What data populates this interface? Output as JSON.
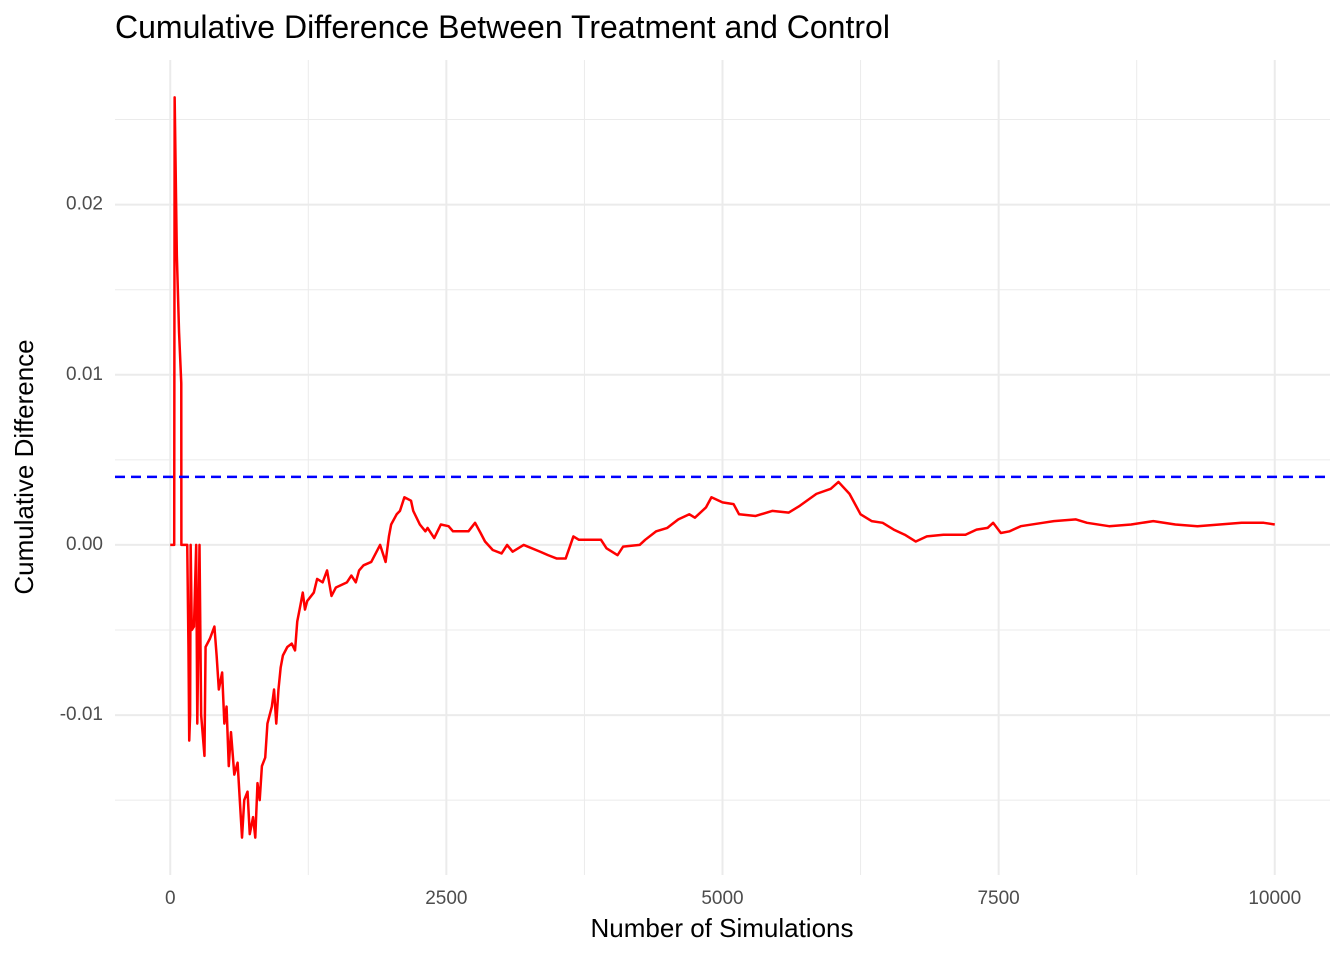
{
  "chart_data": {
    "type": "line",
    "title": "Cumulative Difference Between Treatment and Control",
    "x_label": "Number of Simulations",
    "y_label": "Cumulative Difference",
    "xlim": [
      -500,
      10500
    ],
    "ylim": [
      -0.0194,
      0.0285
    ],
    "xticks": [
      0,
      2500,
      5000,
      7500,
      10000
    ],
    "yticks": [
      -0.01,
      {
        "value": 0,
        "label": "0.00"
      },
      0.01,
      0.02
    ],
    "x_minor_ticks": [
      1250,
      3750,
      6250,
      8750
    ],
    "y_minor_ticks": [
      -0.015,
      -0.005,
      0.005,
      0.015,
      0.025
    ],
    "grid": true,
    "hline": {
      "value": 0.004,
      "color": "#0000ff",
      "dashed": true
    },
    "x": [
      0,
      36,
      40,
      60,
      80,
      100,
      101,
      154,
      165,
      172,
      180,
      185,
      195,
      215,
      235,
      245,
      265,
      280,
      310,
      320,
      360,
      400,
      420,
      440,
      470,
      490,
      510,
      530,
      550,
      580,
      610,
      630,
      650,
      670,
      700,
      720,
      750,
      770,
      790,
      810,
      830,
      860,
      880,
      920,
      940,
      960,
      980,
      1000,
      1020,
      1060,
      1100,
      1130,
      1150,
      1180,
      1200,
      1220,
      1240,
      1300,
      1330,
      1380,
      1420,
      1460,
      1500,
      1600,
      1640,
      1680,
      1710,
      1750,
      1820,
      1860,
      1900,
      1950,
      1980,
      2000,
      2050,
      2080,
      2120,
      2180,
      2200,
      2260,
      2310,
      2330,
      2390,
      2420,
      2450,
      2520,
      2560,
      2700,
      2760,
      2810,
      2850,
      2920,
      3000,
      3050,
      3100,
      3200,
      3350,
      3420,
      3500,
      3580,
      3650,
      3700,
      3900,
      3950,
      4050,
      4100,
      4250,
      4300,
      4400,
      4500,
      4600,
      4700,
      4750,
      4850,
      4900,
      5000,
      5100,
      5150,
      5300,
      5450,
      5600,
      5700,
      5850,
      5980,
      6050,
      6150,
      6250,
      6350,
      6450,
      6550,
      6650,
      6750,
      6850,
      7000,
      7200,
      7300,
      7400,
      7450,
      7520,
      7600,
      7700,
      7900,
      8000,
      8200,
      8300,
      8500,
      8700,
      8900,
      9100,
      9300,
      9500,
      9700,
      9900,
      10000
    ],
    "series": [
      {
        "color": "#ff0000",
        "values": [
          0,
          0,
          0.0263,
          0.017,
          0.0125,
          0.0095,
          0,
          0,
          -0.006,
          -0.0115,
          -0.01,
          0,
          -0.005,
          -0.0048,
          0,
          -0.0105,
          0,
          -0.01,
          -0.0124,
          -0.006,
          -0.0055,
          -0.0048,
          -0.0065,
          -0.0085,
          -0.0075,
          -0.0105,
          -0.0095,
          -0.013,
          -0.011,
          -0.0135,
          -0.0128,
          -0.015,
          -0.0172,
          -0.015,
          -0.0145,
          -0.017,
          -0.016,
          -0.0172,
          -0.014,
          -0.015,
          -0.013,
          -0.0125,
          -0.0105,
          -0.0095,
          -0.0085,
          -0.0105,
          -0.0085,
          -0.0072,
          -0.0065,
          -0.006,
          -0.0058,
          -0.0062,
          -0.0045,
          -0.0035,
          -0.0028,
          -0.0038,
          -0.0033,
          -0.0028,
          -0.002,
          -0.0022,
          -0.0015,
          -0.003,
          -0.0025,
          -0.0022,
          -0.0018,
          -0.0022,
          -0.0015,
          -0.0012,
          -0.001,
          -0.0005,
          0,
          -0.001,
          0.0005,
          0.0012,
          0.0018,
          0.002,
          0.0028,
          0.0026,
          0.002,
          0.0012,
          0.0008,
          0.001,
          0.0004,
          0.0008,
          0.0012,
          0.0011,
          0.0008,
          0.0008,
          0.0013,
          0.0007,
          0.0002,
          -0.0003,
          -0.0005,
          0,
          -0.0004,
          0,
          -0.0004,
          -0.0006,
          -0.0008,
          -0.0008,
          0.0005,
          0.0003,
          0.0003,
          -0.0002,
          -0.0006,
          -0.0001,
          0,
          0.0003,
          0.0008,
          0.001,
          0.0015,
          0.0018,
          0.0016,
          0.0022,
          0.0028,
          0.0025,
          0.0024,
          0.0018,
          0.0017,
          0.002,
          0.0019,
          0.0023,
          0.003,
          0.0033,
          0.0037,
          0.003,
          0.0018,
          0.0014,
          0.0013,
          0.0009,
          0.0006,
          0.0002,
          0.0005,
          0.0006,
          0.0006,
          0.0009,
          0.001,
          0.0013,
          0.0007,
          0.0008,
          0.0011,
          0.0013,
          0.0014,
          0.0015,
          0.0013,
          0.0011,
          0.0012,
          0.0014,
          0.0012,
          0.0011,
          0.0012,
          0.0013,
          0.0013,
          0.0012
        ]
      }
    ]
  }
}
